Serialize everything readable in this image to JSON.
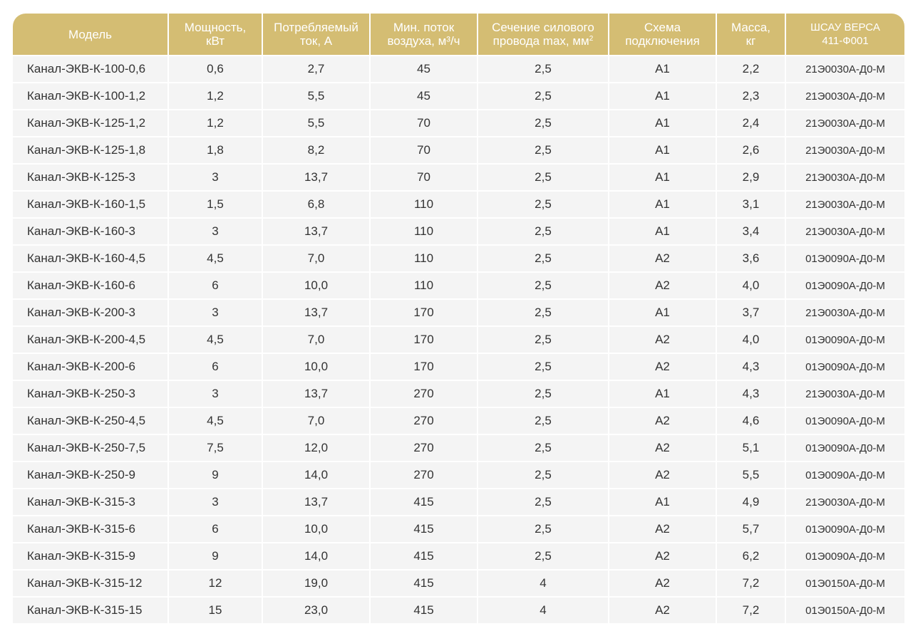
{
  "table": {
    "headers": {
      "model": "Модель",
      "power": [
        "Мощность,",
        "кВт"
      ],
      "current": [
        "Потребляемый",
        "ток, А"
      ],
      "airflow": [
        "Мин. поток",
        "воздуха, м³/ч"
      ],
      "wire": [
        "Сечение силового",
        "провода max, мм",
        "2"
      ],
      "scheme": [
        "Схема",
        "подключения"
      ],
      "mass": [
        "Масса,",
        "кг"
      ],
      "shsau": [
        "ШСАУ ВЕРСА",
        "411-Ф001"
      ]
    },
    "rows": [
      [
        "Канал-ЭКВ-К-100-0,6",
        "0,6",
        "2,7",
        "45",
        "2,5",
        "A1",
        "2,2",
        "21Э0030А-Д0-М"
      ],
      [
        "Канал-ЭКВ-К-100-1,2",
        "1,2",
        "5,5",
        "45",
        "2,5",
        "A1",
        "2,3",
        "21Э0030А-Д0-М"
      ],
      [
        "Канал-ЭКВ-К-125-1,2",
        "1,2",
        "5,5",
        "70",
        "2,5",
        "A1",
        "2,4",
        "21Э0030А-Д0-М"
      ],
      [
        "Канал-ЭКВ-К-125-1,8",
        "1,8",
        "8,2",
        "70",
        "2,5",
        "A1",
        "2,6",
        "21Э0030А-Д0-М"
      ],
      [
        "Канал-ЭКВ-К-125-3",
        "3",
        "13,7",
        "70",
        "2,5",
        "A1",
        "2,9",
        "21Э0030А-Д0-М"
      ],
      [
        "Канал-ЭКВ-К-160-1,5",
        "1,5",
        "6,8",
        "110",
        "2,5",
        "A1",
        "3,1",
        "21Э0030А-Д0-М"
      ],
      [
        "Канал-ЭКВ-К-160-3",
        "3",
        "13,7",
        "110",
        "2,5",
        "A1",
        "3,4",
        "21Э0030А-Д0-М"
      ],
      [
        "Канал-ЭКВ-К-160-4,5",
        "4,5",
        "7,0",
        "110",
        "2,5",
        "A2",
        "3,6",
        "01Э0090А-Д0-М"
      ],
      [
        "Канал-ЭКВ-К-160-6",
        "6",
        "10,0",
        "110",
        "2,5",
        "A2",
        "4,0",
        "01Э0090А-Д0-М"
      ],
      [
        "Канал-ЭКВ-К-200-3",
        "3",
        "13,7",
        "170",
        "2,5",
        "A1",
        "3,7",
        "21Э0030А-Д0-М"
      ],
      [
        "Канал-ЭКВ-К-200-4,5",
        "4,5",
        "7,0",
        "170",
        "2,5",
        "A2",
        "4,0",
        "01Э0090А-Д0-М"
      ],
      [
        "Канал-ЭКВ-К-200-6",
        "6",
        "10,0",
        "170",
        "2,5",
        "A2",
        "4,3",
        "01Э0090А-Д0-М"
      ],
      [
        "Канал-ЭКВ-К-250-3",
        "3",
        "13,7",
        "270",
        "2,5",
        "A1",
        "4,3",
        "21Э0030А-Д0-М"
      ],
      [
        "Канал-ЭКВ-К-250-4,5",
        "4,5",
        "7,0",
        "270",
        "2,5",
        "A2",
        "4,6",
        "01Э0090А-Д0-М"
      ],
      [
        "Канал-ЭКВ-К-250-7,5",
        "7,5",
        "12,0",
        "270",
        "2,5",
        "A2",
        "5,1",
        "01Э0090А-Д0-М"
      ],
      [
        "Канал-ЭКВ-К-250-9",
        "9",
        "14,0",
        "270",
        "2,5",
        "A2",
        "5,5",
        "01Э0090А-Д0-М"
      ],
      [
        "Канал-ЭКВ-К-315-3",
        "3",
        "13,7",
        "415",
        "2,5",
        "A1",
        "4,9",
        "21Э0030А-Д0-М"
      ],
      [
        "Канал-ЭКВ-К-315-6",
        "6",
        "10,0",
        "415",
        "2,5",
        "A2",
        "5,7",
        "01Э0090А-Д0-М"
      ],
      [
        "Канал-ЭКВ-К-315-9",
        "9",
        "14,0",
        "415",
        "2,5",
        "A2",
        "6,2",
        "01Э0090А-Д0-М"
      ],
      [
        "Канал-ЭКВ-К-315-12",
        "12",
        "19,0",
        "415",
        "4",
        "A2",
        "7,2",
        "01Э0150А-Д0-М"
      ],
      [
        "Канал-ЭКВ-К-315-15",
        "15",
        "23,0",
        "415",
        "4",
        "A2",
        "7,2",
        "01Э0150А-Д0-М"
      ]
    ]
  },
  "colors": {
    "header_bg": "#d4bd73",
    "header_text": "#ffffff",
    "cell_bg": "#f4f4f4",
    "cell_text": "#333333"
  }
}
